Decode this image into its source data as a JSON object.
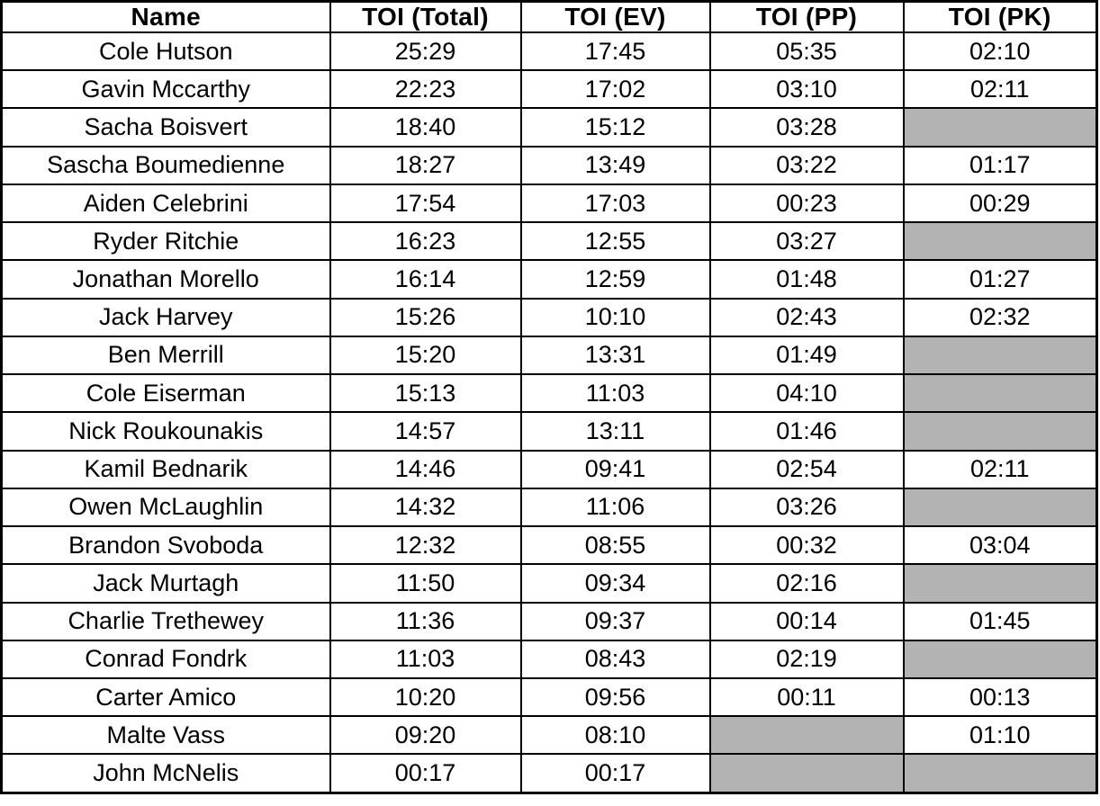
{
  "table": {
    "columns": [
      {
        "key": "name",
        "label": "Name"
      },
      {
        "key": "total",
        "label": "TOI (Total)"
      },
      {
        "key": "ev",
        "label": "TOI (EV)"
      },
      {
        "key": "pp",
        "label": "TOI (PP)"
      },
      {
        "key": "pk",
        "label": "TOI (PK)"
      }
    ],
    "rows": [
      {
        "name": "Cole Hutson",
        "total": "25:29",
        "ev": "17:45",
        "pp": "05:35",
        "pk": "02:10"
      },
      {
        "name": "Gavin Mccarthy",
        "total": "22:23",
        "ev": "17:02",
        "pp": "03:10",
        "pk": "02:11"
      },
      {
        "name": "Sacha Boisvert",
        "total": "18:40",
        "ev": "15:12",
        "pp": "03:28",
        "pk": null
      },
      {
        "name": "Sascha Boumedienne",
        "total": "18:27",
        "ev": "13:49",
        "pp": "03:22",
        "pk": "01:17"
      },
      {
        "name": "Aiden Celebrini",
        "total": "17:54",
        "ev": "17:03",
        "pp": "00:23",
        "pk": "00:29"
      },
      {
        "name": "Ryder Ritchie",
        "total": "16:23",
        "ev": "12:55",
        "pp": "03:27",
        "pk": null
      },
      {
        "name": "Jonathan Morello",
        "total": "16:14",
        "ev": "12:59",
        "pp": "01:48",
        "pk": "01:27"
      },
      {
        "name": "Jack Harvey",
        "total": "15:26",
        "ev": "10:10",
        "pp": "02:43",
        "pk": "02:32"
      },
      {
        "name": "Ben Merrill",
        "total": "15:20",
        "ev": "13:31",
        "pp": "01:49",
        "pk": null
      },
      {
        "name": "Cole Eiserman",
        "total": "15:13",
        "ev": "11:03",
        "pp": "04:10",
        "pk": null
      },
      {
        "name": "Nick Roukounakis",
        "total": "14:57",
        "ev": "13:11",
        "pp": "01:46",
        "pk": null
      },
      {
        "name": "Kamil Bednarik",
        "total": "14:46",
        "ev": "09:41",
        "pp": "02:54",
        "pk": "02:11"
      },
      {
        "name": "Owen McLaughlin",
        "total": "14:32",
        "ev": "11:06",
        "pp": "03:26",
        "pk": null
      },
      {
        "name": "Brandon Svoboda",
        "total": "12:32",
        "ev": "08:55",
        "pp": "00:32",
        "pk": "03:04"
      },
      {
        "name": "Jack Murtagh",
        "total": "11:50",
        "ev": "09:34",
        "pp": "02:16",
        "pk": null
      },
      {
        "name": "Charlie Trethewey",
        "total": "11:36",
        "ev": "09:37",
        "pp": "00:14",
        "pk": "01:45"
      },
      {
        "name": "Conrad Fondrk",
        "total": "11:03",
        "ev": "08:43",
        "pp": "02:19",
        "pk": null
      },
      {
        "name": "Carter Amico",
        "total": "10:20",
        "ev": "09:56",
        "pp": "00:11",
        "pk": "00:13"
      },
      {
        "name": "Malte Vass",
        "total": "09:20",
        "ev": "08:10",
        "pp": null,
        "pk": "01:10"
      },
      {
        "name": "John McNelis",
        "total": "00:17",
        "ev": "00:17",
        "pp": null,
        "pk": null
      }
    ],
    "colors": {
      "border": "#000000",
      "empty_cell": "#b3b3b3",
      "cell_background": "#ffffff",
      "text": "#000000"
    }
  }
}
